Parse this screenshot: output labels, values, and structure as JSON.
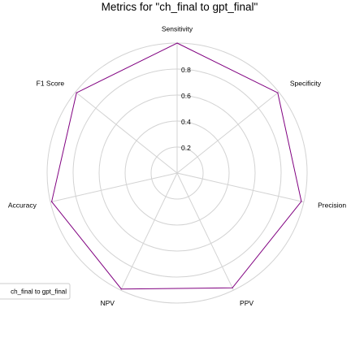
{
  "chart_data": {
    "type": "radar",
    "title": "Metrics for \"ch_final to gpt_final\"",
    "axes": [
      "Sensitivity",
      "Specificity",
      "Precision",
      "PPV",
      "NPV",
      "Accuracy",
      "F1 Score"
    ],
    "rlim": [
      0,
      1
    ],
    "rticks": [
      0.2,
      0.4,
      0.6,
      0.8
    ],
    "rtick_labels": [
      "0.2",
      "0.4",
      "0.6",
      "0.8"
    ],
    "grid": true,
    "legend_position": "lower-left",
    "series": [
      {
        "name": "ch_final to gpt_final",
        "values": [
          1.0,
          0.99,
          0.98,
          0.98,
          0.99,
          0.99,
          0.99
        ],
        "color": "#800080"
      }
    ],
    "grid_color": "#d3d3d3"
  }
}
